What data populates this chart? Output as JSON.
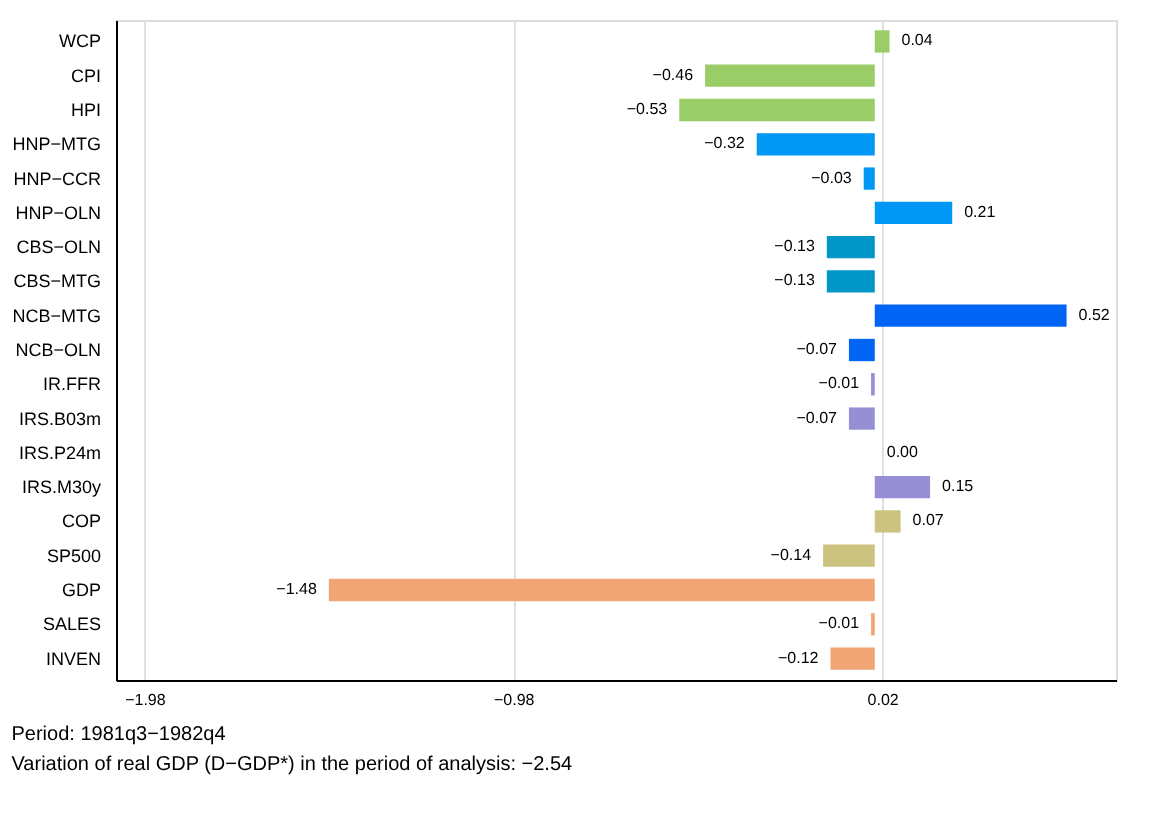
{
  "chart_data": {
    "type": "bar",
    "orientation": "horizontal",
    "categories": [
      "WCP",
      "CPI",
      "HPI",
      "HNP−MTG",
      "HNP−CCR",
      "HNP−OLN",
      "CBS−OLN",
      "CBS−MTG",
      "NCB−MTG",
      "NCB−OLN",
      "IR.FFR",
      "IRS.B03m",
      "IRS.P24m",
      "IRS.M30y",
      "COP",
      "SP500",
      "GDP",
      "SALES",
      "INVEN"
    ],
    "values": [
      0.04,
      -0.46,
      -0.53,
      -0.32,
      -0.03,
      0.21,
      -0.13,
      -0.13,
      0.52,
      -0.07,
      -0.01,
      -0.07,
      0.0,
      0.15,
      0.07,
      -0.14,
      -1.48,
      -0.01,
      -0.12
    ],
    "colors": [
      "#9acd68",
      "#9acd68",
      "#9acd68",
      "#0097f5",
      "#0097f5",
      "#0097f5",
      "#0097c8",
      "#0097c8",
      "#0064f5",
      "#0064f5",
      "#968fd6",
      "#968fd6",
      "#968fd6",
      "#968fd6",
      "#cbc37e",
      "#cbc37e",
      "#f2a574",
      "#f2a574",
      "#f2a574"
    ],
    "value_labels": [
      "0.04",
      "−0.46",
      "−0.53",
      "−0.32",
      "−0.03",
      "0.21",
      "−0.13",
      "−0.13",
      "0.52",
      "−0.07",
      "−0.01",
      "−0.07",
      "0.00",
      "0.15",
      "0.07",
      "−0.14",
      "−1.48",
      "−0.01",
      "−0.12"
    ],
    "xlim": [
      -2.057,
      0.654
    ],
    "xticks": [
      {
        "value": -1.98,
        "label": "−1.98"
      },
      {
        "value": -0.98,
        "label": "−0.98"
      },
      {
        "value": 0.02,
        "label": "0.02"
      }
    ],
    "grid": "x",
    "annotations": [
      "Period: 1981q3−1982q4",
      "Variation of real GDP (D−GDP*) in the period of analysis: −2.54"
    ]
  }
}
